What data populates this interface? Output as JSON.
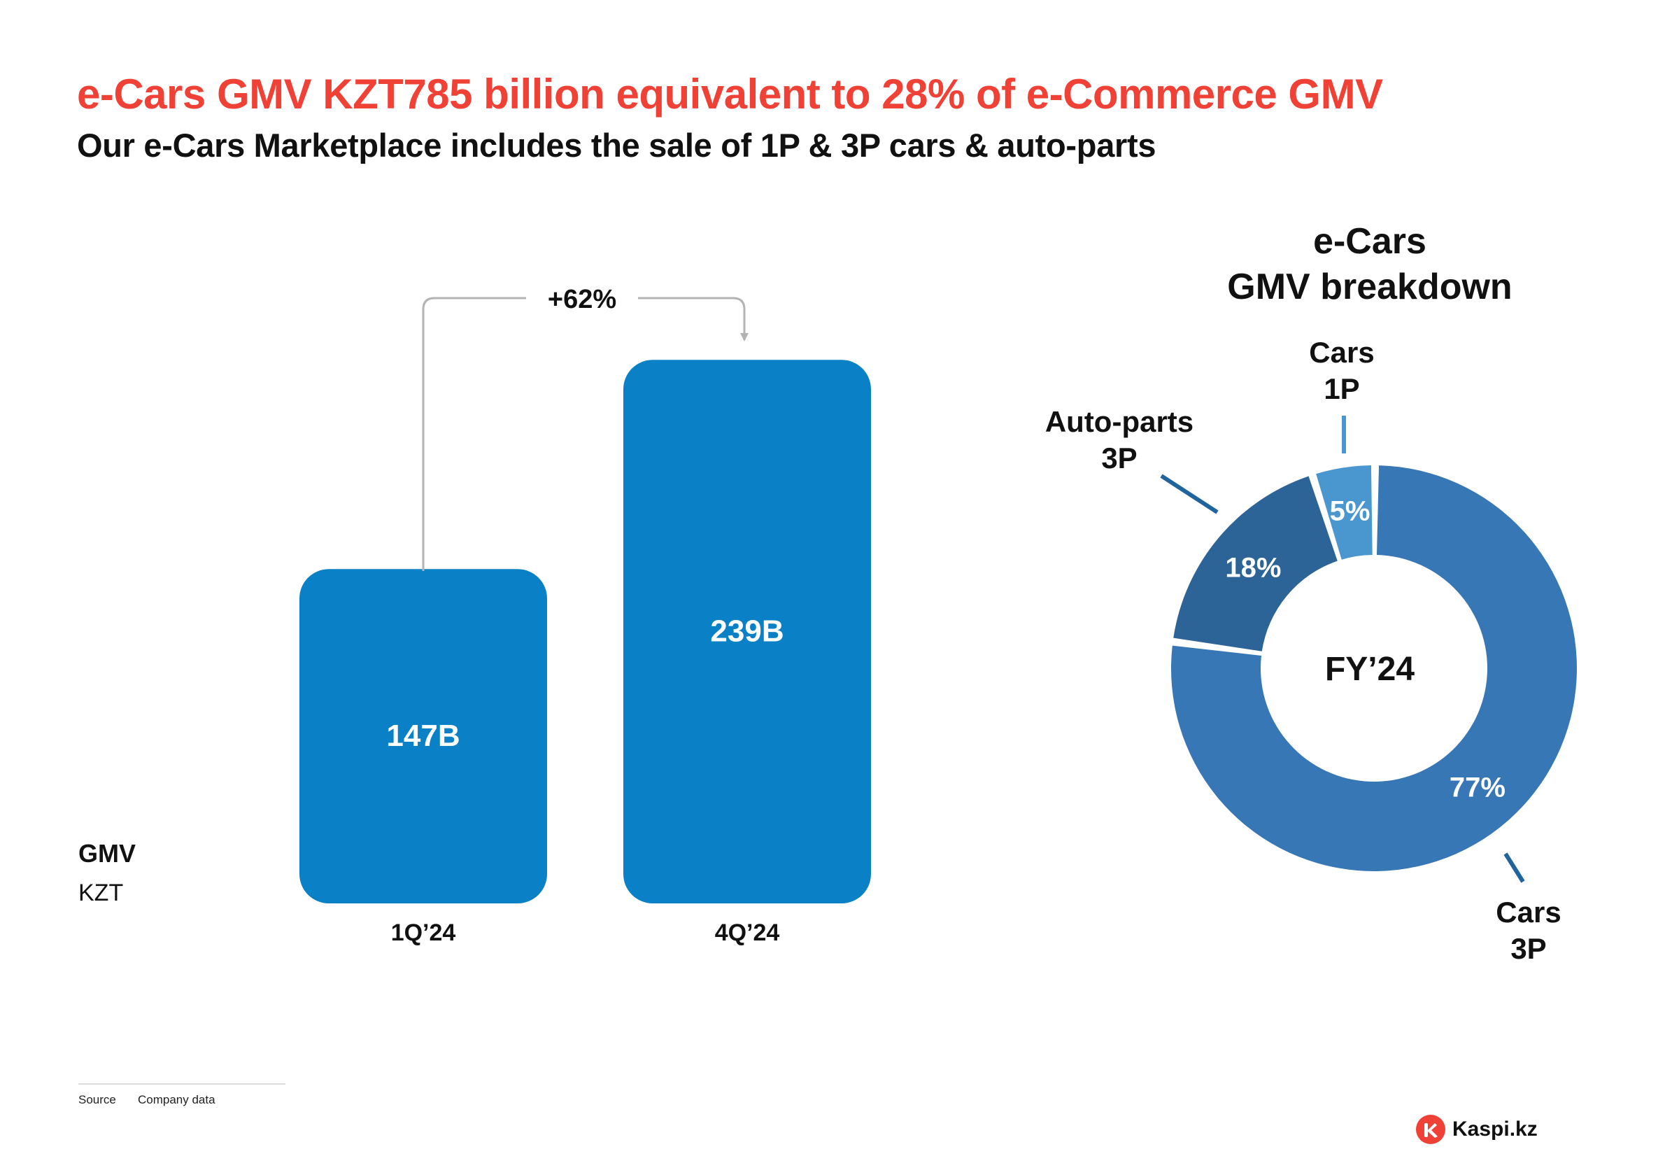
{
  "header": {
    "title": "e-Cars GMV KZT785 billion equivalent to 28% of e-Commerce GMV",
    "subtitle": "Our e-Cars Marketplace includes the sale of 1P & 3P cars & auto-parts"
  },
  "colors": {
    "title": "#EF4136",
    "bar": "#0A80C6",
    "arrow": "#B3B3B3",
    "cars_3p": "#3777B6",
    "auto_parts_3p": "#2C6498",
    "cars_1p": "#4A97D0",
    "leader": "#20649E"
  },
  "chart_data": [
    {
      "type": "bar",
      "categories": [
        "1Q’24",
        "4Q’24"
      ],
      "values": [
        147,
        239
      ],
      "data_labels": [
        "147B",
        "239B"
      ],
      "ylabel": "GMV",
      "ylabel_unit": "KZT",
      "growth_annotation": "+62%",
      "grid": false
    },
    {
      "type": "pie",
      "style": "donut",
      "title_line1": "e-Cars",
      "title_line2": "GMV breakdown",
      "center_label": "FY’24",
      "slices": [
        {
          "label_line1": "Cars",
          "label_line2": "3P",
          "value": 77,
          "pct_label": "77%",
          "color": "#3777B6"
        },
        {
          "label_line1": "Auto-parts",
          "label_line2": "3P",
          "value": 18,
          "pct_label": "18%",
          "color": "#2C6498"
        },
        {
          "label_line1": "Cars",
          "label_line2": "1P",
          "value": 5,
          "pct_label": "5%",
          "color": "#4A97D0"
        }
      ]
    }
  ],
  "footer": {
    "source_label": "Source",
    "source_text": "Company data",
    "brand": "Kaspi.kz"
  }
}
